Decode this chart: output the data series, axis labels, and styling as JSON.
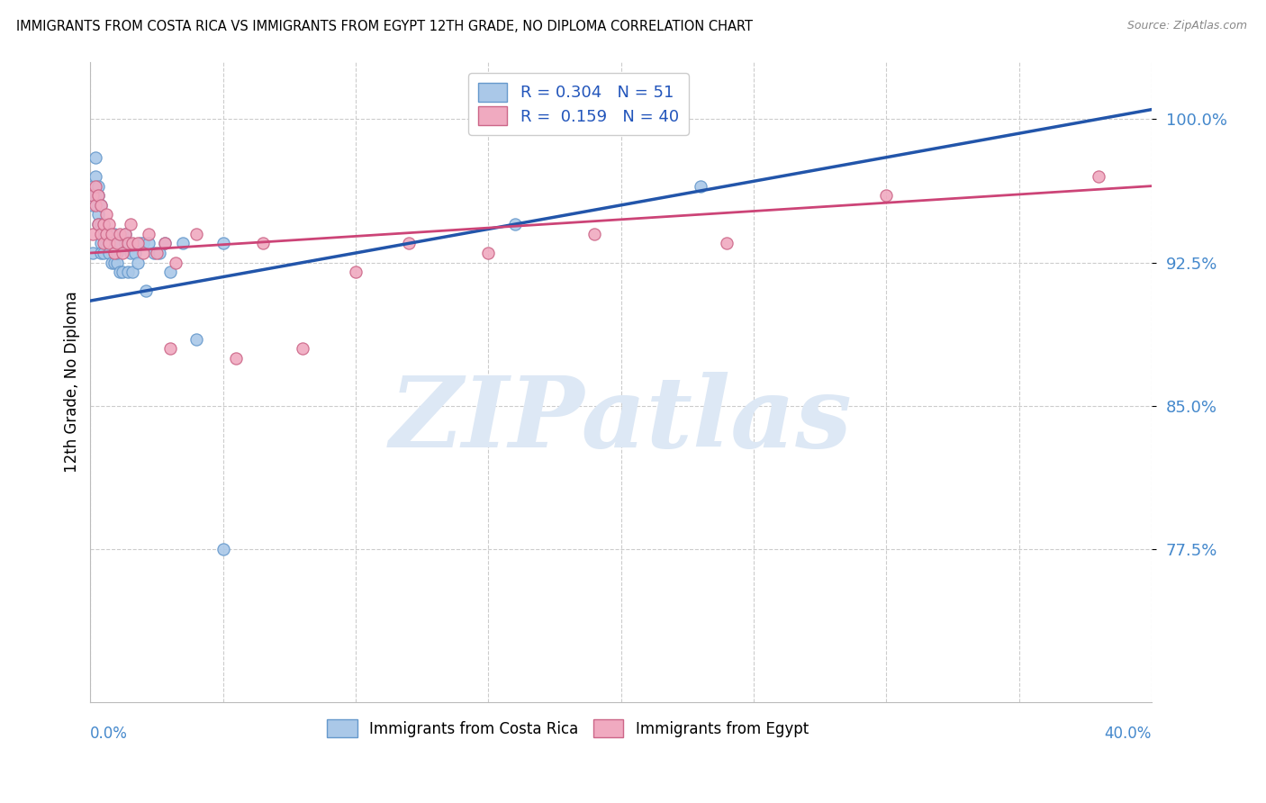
{
  "title": "IMMIGRANTS FROM COSTA RICA VS IMMIGRANTS FROM EGYPT 12TH GRADE, NO DIPLOMA CORRELATION CHART",
  "source": "Source: ZipAtlas.com",
  "ylabel": "12th Grade, No Diploma",
  "yticks": [
    0.775,
    0.85,
    0.925,
    1.0
  ],
  "ytick_labels": [
    "77.5%",
    "85.0%",
    "92.5%",
    "100.0%"
  ],
  "xlim": [
    0.0,
    0.4
  ],
  "ylim": [
    0.695,
    1.03
  ],
  "series1_label": "Immigrants from Costa Rica",
  "series1_R": "0.304",
  "series1_N": "51",
  "series1_color": "#aac8e8",
  "series1_edge_color": "#6699cc",
  "series1_line_color": "#2255aa",
  "series2_label": "Immigrants from Egypt",
  "series2_R": "0.159",
  "series2_N": "40",
  "series2_color": "#f0aac0",
  "series2_edge_color": "#cc6688",
  "series2_line_color": "#cc4477",
  "watermark": "ZIPatlas",
  "watermark_color": "#dde8f5",
  "legend_label_color": "#2255bb",
  "axis_color": "#4488cc",
  "tick_color": "#4488cc",
  "grid_color": "#cccccc",
  "background_color": "#ffffff",
  "trend1_x0": 0.0,
  "trend1_y0": 0.905,
  "trend1_x1": 0.4,
  "trend1_y1": 1.005,
  "trend2_x0": 0.0,
  "trend2_y0": 0.93,
  "trend2_x1": 0.4,
  "trend2_y1": 0.965,
  "costa_rica_x": [
    0.001,
    0.001,
    0.001,
    0.002,
    0.002,
    0.002,
    0.003,
    0.003,
    0.003,
    0.003,
    0.004,
    0.004,
    0.004,
    0.004,
    0.005,
    0.005,
    0.005,
    0.006,
    0.006,
    0.007,
    0.007,
    0.007,
    0.008,
    0.008,
    0.009,
    0.009,
    0.01,
    0.01,
    0.011,
    0.011,
    0.012,
    0.013,
    0.013,
    0.014,
    0.015,
    0.016,
    0.017,
    0.018,
    0.019,
    0.02,
    0.021,
    0.022,
    0.024,
    0.026,
    0.028,
    0.03,
    0.035,
    0.04,
    0.05,
    0.16,
    0.23
  ],
  "costa_rica_y": [
    0.93,
    0.955,
    0.965,
    0.96,
    0.97,
    0.98,
    0.96,
    0.965,
    0.95,
    0.945,
    0.945,
    0.955,
    0.935,
    0.93,
    0.94,
    0.93,
    0.945,
    0.94,
    0.935,
    0.935,
    0.94,
    0.93,
    0.935,
    0.925,
    0.925,
    0.94,
    0.925,
    0.93,
    0.935,
    0.92,
    0.92,
    0.935,
    0.94,
    0.92,
    0.93,
    0.92,
    0.93,
    0.925,
    0.935,
    0.935,
    0.91,
    0.935,
    0.93,
    0.93,
    0.935,
    0.92,
    0.935,
    0.885,
    0.935,
    0.945,
    0.965
  ],
  "egypt_x": [
    0.001,
    0.001,
    0.002,
    0.002,
    0.003,
    0.003,
    0.004,
    0.004,
    0.005,
    0.005,
    0.006,
    0.006,
    0.007,
    0.007,
    0.008,
    0.009,
    0.01,
    0.011,
    0.012,
    0.013,
    0.014,
    0.015,
    0.016,
    0.018,
    0.02,
    0.022,
    0.025,
    0.028,
    0.032,
    0.04,
    0.055,
    0.065,
    0.08,
    0.1,
    0.12,
    0.15,
    0.19,
    0.24,
    0.3,
    0.38
  ],
  "egypt_y": [
    0.94,
    0.96,
    0.955,
    0.965,
    0.945,
    0.96,
    0.94,
    0.955,
    0.945,
    0.935,
    0.94,
    0.95,
    0.935,
    0.945,
    0.94,
    0.93,
    0.935,
    0.94,
    0.93,
    0.94,
    0.935,
    0.945,
    0.935,
    0.935,
    0.93,
    0.94,
    0.93,
    0.935,
    0.925,
    0.94,
    0.875,
    0.935,
    0.88,
    0.92,
    0.935,
    0.93,
    0.94,
    0.935,
    0.96,
    0.97
  ]
}
